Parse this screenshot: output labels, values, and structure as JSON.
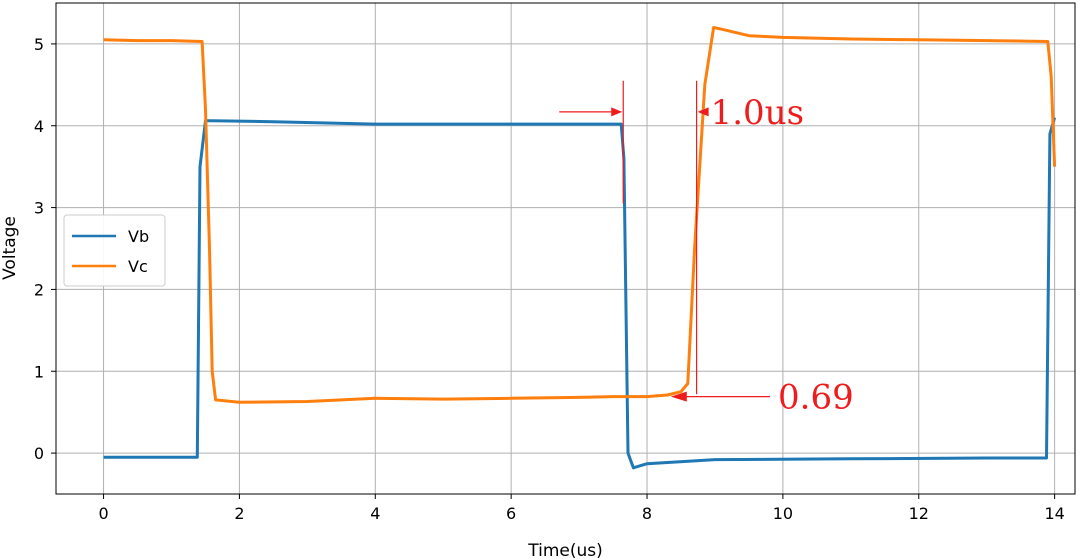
{
  "chart_data": {
    "type": "line",
    "title": "",
    "xlabel": "Time(us)",
    "ylabel": "Voltage",
    "xlim": [
      -0.7,
      14.3
    ],
    "ylim": [
      -0.5,
      5.5
    ],
    "xticks": [
      0,
      2,
      4,
      6,
      8,
      10,
      12,
      14
    ],
    "yticks": [
      0,
      1,
      2,
      3,
      4,
      5
    ],
    "grid": true,
    "legend": {
      "position": "center-left"
    },
    "colors": {
      "Vb": "#1f77b4",
      "Vc": "#ff7f0e",
      "annotation": "#ee1c1c"
    },
    "series": [
      {
        "name": "Vb",
        "x": [
          0,
          1.38,
          1.42,
          1.5,
          1.6,
          2.5,
          4,
          6,
          7.62,
          7.66,
          7.72,
          7.8,
          8.0,
          9,
          11,
          13,
          13.88,
          13.93,
          14.0
        ],
        "y": [
          -0.05,
          -0.05,
          3.5,
          4.06,
          4.06,
          4.05,
          4.02,
          4.02,
          4.02,
          3.6,
          0.0,
          -0.18,
          -0.13,
          -0.08,
          -0.07,
          -0.06,
          -0.06,
          3.9,
          4.1
        ]
      },
      {
        "name": "Vc",
        "x": [
          0,
          0.5,
          1.0,
          1.45,
          1.5,
          1.56,
          1.6,
          1.65,
          2,
          3,
          4,
          5,
          6,
          7,
          7.5,
          8,
          8.3,
          8.5,
          8.6,
          8.7,
          8.85,
          8.98,
          9.1,
          9.5,
          10,
          11,
          12,
          13,
          13.9,
          13.95,
          14.0
        ],
        "y": [
          5.05,
          5.04,
          5.04,
          5.03,
          4.2,
          2.5,
          1.0,
          0.65,
          0.62,
          0.63,
          0.67,
          0.66,
          0.67,
          0.68,
          0.69,
          0.69,
          0.71,
          0.75,
          0.85,
          2.5,
          4.5,
          5.2,
          5.18,
          5.1,
          5.08,
          5.06,
          5.05,
          5.04,
          5.03,
          4.6,
          3.5
        ]
      }
    ],
    "annotations": [
      {
        "text": "1.0us",
        "type": "interval",
        "x_start": 7.65,
        "x_end": 8.73
      },
      {
        "text": "0.69",
        "type": "value-arrow",
        "x": 8.35,
        "y": 0.69
      }
    ]
  }
}
